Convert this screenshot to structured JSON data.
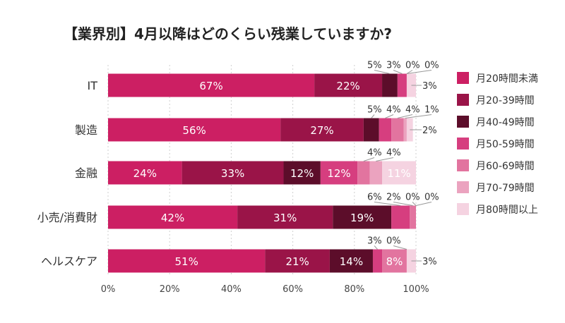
{
  "chart_data": {
    "type": "bar",
    "orientation": "horizontal",
    "stacked": true,
    "title": "【業界別】4月以降はどのくらい残業していますか?",
    "categories": [
      "IT",
      "製造",
      "金融",
      "小売/消費財",
      "ヘルスケア"
    ],
    "xlim": [
      0,
      100
    ],
    "x_ticks": [
      "0%",
      "20%",
      "40%",
      "60%",
      "80%",
      "100%"
    ],
    "grid": "vertical dashed",
    "legend_position": "right",
    "series": [
      {
        "name": "月20時間未満",
        "color": "#cc1f63",
        "values": [
          67,
          56,
          24,
          42,
          51
        ]
      },
      {
        "name": "月20-39時間",
        "color": "#9a1448",
        "values": [
          22,
          27,
          33,
          31,
          21
        ]
      },
      {
        "name": "月40-49時間",
        "color": "#5c0d2a",
        "values": [
          5,
          5,
          12,
          19,
          14
        ]
      },
      {
        "name": "月50-59時間",
        "color": "#d63e7f",
        "values": [
          3,
          4,
          12,
          6,
          3
        ]
      },
      {
        "name": "月60-69時間",
        "color": "#e2749f",
        "values": [
          0,
          4,
          4,
          2,
          8
        ]
      },
      {
        "name": "月70-79時間",
        "color": "#eba3bf",
        "values": [
          0,
          1,
          4,
          0,
          0
        ]
      },
      {
        "name": "月80時間以上",
        "color": "#f5d3e1",
        "values": [
          3,
          2,
          11,
          0,
          3
        ]
      }
    ]
  }
}
